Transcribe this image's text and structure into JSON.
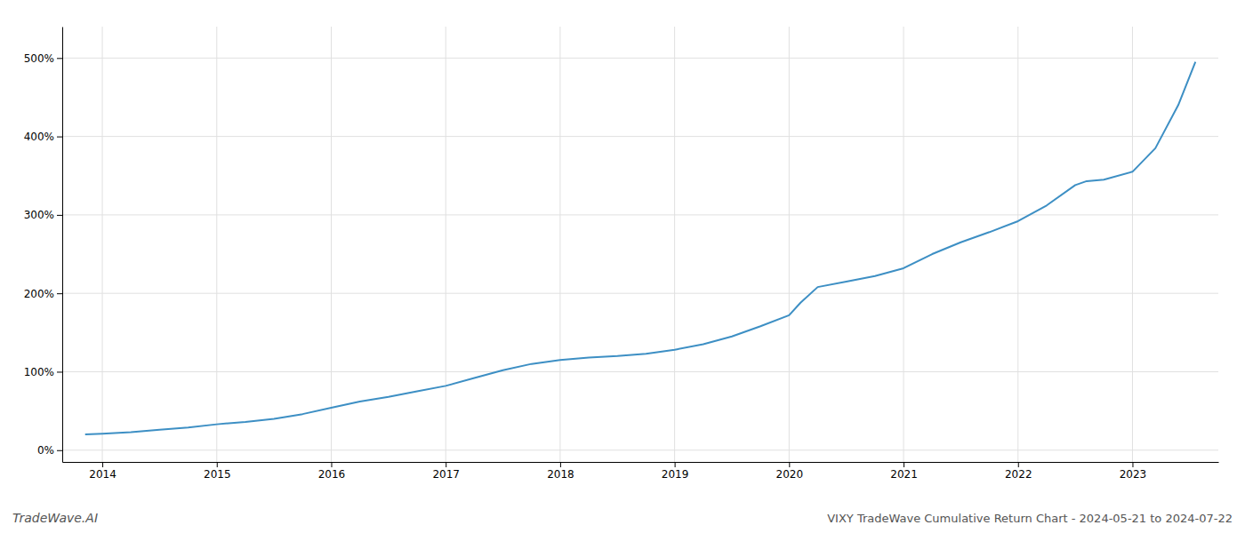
{
  "chart_data": {
    "type": "line",
    "title": "VIXY TradeWave Cumulative Return Chart - 2024-05-21 to 2024-07-22",
    "annotations": [
      "TradeWave.AI"
    ],
    "color": "#3d8fc4",
    "grid": true,
    "x": [
      2013.85,
      2014.0,
      2014.25,
      2014.5,
      2014.75,
      2015.0,
      2015.25,
      2015.5,
      2015.75,
      2016.0,
      2016.25,
      2016.5,
      2016.75,
      2017.0,
      2017.25,
      2017.5,
      2017.75,
      2018.0,
      2018.25,
      2018.5,
      2018.75,
      2019.0,
      2019.25,
      2019.5,
      2019.75,
      2020.0,
      2020.1,
      2020.25,
      2020.5,
      2020.75,
      2021.0,
      2021.25,
      2021.5,
      2021.75,
      2022.0,
      2022.25,
      2022.5,
      2022.6,
      2022.75,
      2023.0,
      2023.2,
      2023.4,
      2023.55
    ],
    "values": [
      20,
      21,
      23,
      26,
      29,
      33,
      36,
      40,
      46,
      54,
      62,
      68,
      75,
      82,
      92,
      102,
      110,
      115,
      118,
      120,
      123,
      128,
      135,
      145,
      158,
      172,
      188,
      208,
      215,
      222,
      232,
      250,
      265,
      278,
      292,
      312,
      338,
      343,
      345,
      355,
      385,
      440,
      495
    ],
    "xlim": [
      2013.65,
      2023.75
    ],
    "xticks": [
      2014,
      2015,
      2016,
      2017,
      2018,
      2019,
      2020,
      2021,
      2022,
      2023
    ],
    "ylim": [
      -15,
      540
    ],
    "yticks": [
      {
        "value": 0,
        "label": "0%"
      },
      {
        "value": 100,
        "label": "100%"
      },
      {
        "value": 200,
        "label": "200%"
      },
      {
        "value": 300,
        "label": "300%"
      },
      {
        "value": 400,
        "label": "400%"
      },
      {
        "value": 500,
        "label": "500%"
      }
    ]
  }
}
